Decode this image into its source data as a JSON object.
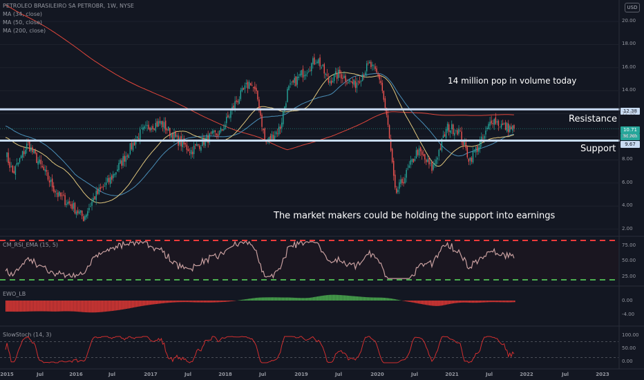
{
  "header": {
    "title": "PETROLEO BRASILEIRO SA PETROBR, 1W, NYSE",
    "indicators": [
      "MA (34, close)",
      "MA (50, close)",
      "MA (200, close)"
    ],
    "currency": "USD"
  },
  "annotations": {
    "volume": "14 million pop in volume today",
    "resistance": "Resistance",
    "support": "Support",
    "market_makers": "The market makers could be holding the support into earnings"
  },
  "price_labels": {
    "resistance": "12.38",
    "current": "10.71",
    "countdown": "3d 20h",
    "support": "9.67"
  },
  "y_ticks": [
    "20.00",
    "18.00",
    "16.00",
    "14.00",
    "12.00",
    "10.00",
    "8.00",
    "6.00",
    "4.00",
    "2.00"
  ],
  "x_ticks": [
    "2015",
    "Jul",
    "2016",
    "Jul",
    "2017",
    "Jul",
    "2018",
    "Jul",
    "2019",
    "Jul",
    "2020",
    "Jul",
    "2021",
    "Jul",
    "2022",
    "Jul",
    "2023"
  ],
  "panels": {
    "rsi": {
      "title": "CM_RSI_EMA (15, 5)",
      "ticks": [
        "75.00",
        "50.00",
        "25.00"
      ]
    },
    "ewo": {
      "title": "EWO_LB",
      "ticks": [
        "0.00",
        "-4.00"
      ]
    },
    "stoch": {
      "title": "SlowStoch (14, 3)",
      "ticks": [
        "100.00",
        "50.00",
        "0.00"
      ]
    }
  },
  "colors": {
    "background": "#131722",
    "up": "#26a69a",
    "down": "#ef5350",
    "support_resistance": "#c9dcf3",
    "ma34": "#e2c87e",
    "ma50": "#4a8fb8",
    "ma200": "#e0463b",
    "rsi_band_up": "#ef3b3b",
    "rsi_band_down": "#4caf50"
  },
  "chart_data": {
    "type": "candlestick",
    "title": "PETROLEO BRASILEIRO SA PETROBR, 1W, NYSE",
    "ylim": [
      1.5,
      21.5
    ],
    "resistance": 12.38,
    "support": 9.67,
    "last_price": 10.71,
    "price_keypoints": [
      {
        "t": 2015.0,
        "p": 8.6
      },
      {
        "t": 2015.1,
        "p": 6.8
      },
      {
        "t": 2015.3,
        "p": 9.4
      },
      {
        "t": 2015.5,
        "p": 7.2
      },
      {
        "t": 2015.7,
        "p": 5.0
      },
      {
        "t": 2015.9,
        "p": 4.0
      },
      {
        "t": 2016.05,
        "p": 3.0
      },
      {
        "t": 2016.2,
        "p": 4.8
      },
      {
        "t": 2016.4,
        "p": 6.2
      },
      {
        "t": 2016.6,
        "p": 8.2
      },
      {
        "t": 2016.8,
        "p": 10.2
      },
      {
        "t": 2016.95,
        "p": 11.0
      },
      {
        "t": 2017.1,
        "p": 11.2
      },
      {
        "t": 2017.3,
        "p": 9.8
      },
      {
        "t": 2017.5,
        "p": 8.8
      },
      {
        "t": 2017.7,
        "p": 9.8
      },
      {
        "t": 2017.9,
        "p": 10.4
      },
      {
        "t": 2018.1,
        "p": 13.0
      },
      {
        "t": 2018.3,
        "p": 14.8
      },
      {
        "t": 2018.4,
        "p": 13.2
      },
      {
        "t": 2018.5,
        "p": 9.4
      },
      {
        "t": 2018.7,
        "p": 10.8
      },
      {
        "t": 2018.8,
        "p": 14.0
      },
      {
        "t": 2019.0,
        "p": 15.5
      },
      {
        "t": 2019.2,
        "p": 16.8
      },
      {
        "t": 2019.35,
        "p": 14.8
      },
      {
        "t": 2019.5,
        "p": 15.5
      },
      {
        "t": 2019.7,
        "p": 14.5
      },
      {
        "t": 2019.9,
        "p": 16.3
      },
      {
        "t": 2020.05,
        "p": 15.0
      },
      {
        "t": 2020.15,
        "p": 11.0
      },
      {
        "t": 2020.25,
        "p": 5.0
      },
      {
        "t": 2020.4,
        "p": 6.8
      },
      {
        "t": 2020.55,
        "p": 8.8
      },
      {
        "t": 2020.75,
        "p": 7.2
      },
      {
        "t": 2020.95,
        "p": 10.8
      },
      {
        "t": 2021.1,
        "p": 10.6
      },
      {
        "t": 2021.25,
        "p": 8.0
      },
      {
        "t": 2021.45,
        "p": 10.0
      },
      {
        "t": 2021.55,
        "p": 11.6
      },
      {
        "t": 2021.7,
        "p": 10.9
      },
      {
        "t": 2021.85,
        "p": 10.7
      }
    ]
  }
}
